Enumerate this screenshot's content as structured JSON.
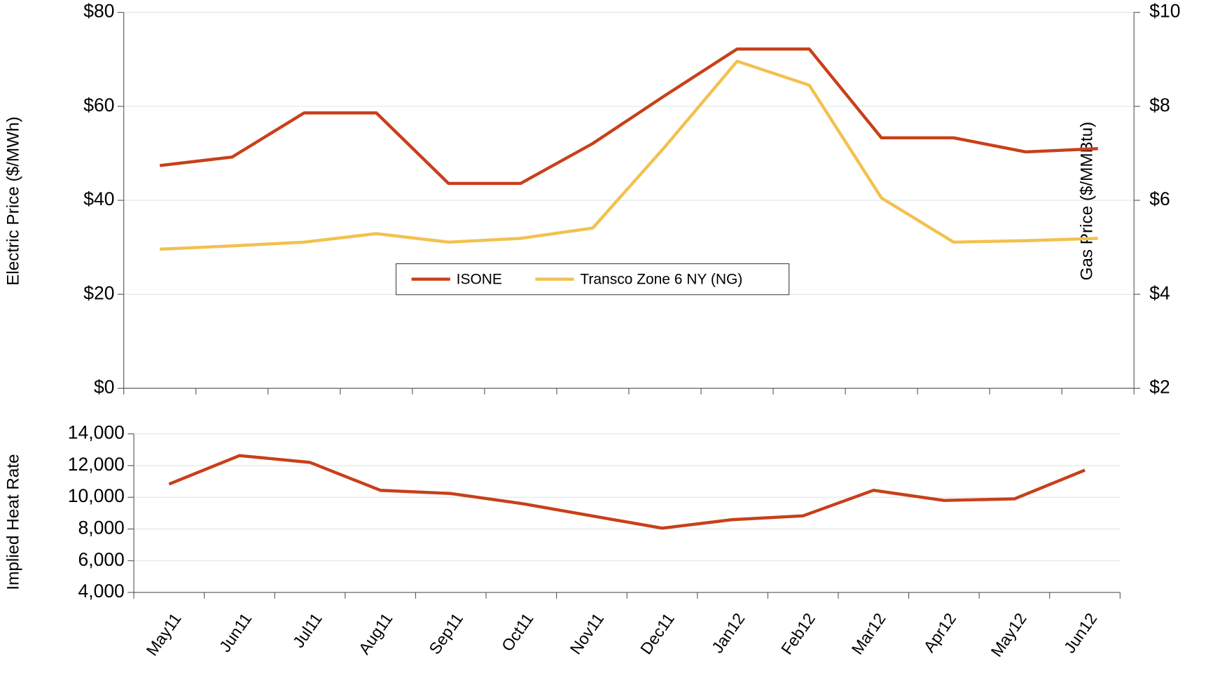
{
  "chart_data": [
    {
      "type": "line",
      "y_label": "Electric Price ($/MWh)",
      "y2_label": "Gas Price ($/MMBtu)",
      "ylim": [
        0,
        80
      ],
      "yticks": [
        {
          "value": 0,
          "label": "$0"
        },
        {
          "value": 20,
          "label": "$20"
        },
        {
          "value": 40,
          "label": "$40"
        },
        {
          "value": 60,
          "label": "$60"
        },
        {
          "value": 80,
          "label": "$80"
        }
      ],
      "y2lim": [
        2,
        10
      ],
      "y2ticks": [
        {
          "value": 2,
          "label": "$2"
        },
        {
          "value": 4,
          "label": "$4"
        },
        {
          "value": 6,
          "label": "$6"
        },
        {
          "value": 8,
          "label": "$8"
        },
        {
          "value": 10,
          "label": "$10"
        }
      ],
      "grid": true,
      "legend": "center",
      "series": [
        {
          "name": "ISONE",
          "color": "#c8401a",
          "values": [
            47.4,
            49.2,
            58.6,
            58.6,
            43.6,
            43.6,
            52.1,
            62.3,
            72.2,
            72.2,
            53.3,
            53.3,
            50.3,
            51.0
          ]
        },
        {
          "name": "Transco Zone 6 NY (NG)",
          "color": "#f2c14e",
          "axis": "y2",
          "values": [
            4.96,
            5.03,
            5.11,
            5.29,
            5.11,
            5.19,
            5.41,
            7.14,
            8.96,
            8.45,
            6.05,
            5.11,
            5.14,
            5.19
          ]
        }
      ]
    },
    {
      "type": "line",
      "y_label": "Implied Heat Rate",
      "categories": [
        "May11",
        "Jun11",
        "Jul11",
        "Aug11",
        "Sep11",
        "Oct11",
        "Nov11",
        "Dec11",
        "Jan12",
        "Feb12",
        "Mar12",
        "Apr12",
        "May12",
        "Jun12"
      ],
      "ylim": [
        4000,
        14000
      ],
      "yticks": [
        {
          "value": 4000,
          "label": "4,000"
        },
        {
          "value": 6000,
          "label": "6,000"
        },
        {
          "value": 8000,
          "label": "8,000"
        },
        {
          "value": 10000,
          "label": "10,000"
        },
        {
          "value": 12000,
          "label": "12,000"
        },
        {
          "value": 14000,
          "label": "14,000"
        }
      ],
      "grid": true,
      "series": [
        {
          "name": "Implied Heat Rate",
          "color": "#c8401a",
          "values": [
            10830,
            12630,
            12200,
            10440,
            10240,
            9610,
            8830,
            8050,
            8590,
            8830,
            10440,
            9800,
            9900,
            11710
          ]
        }
      ]
    }
  ]
}
